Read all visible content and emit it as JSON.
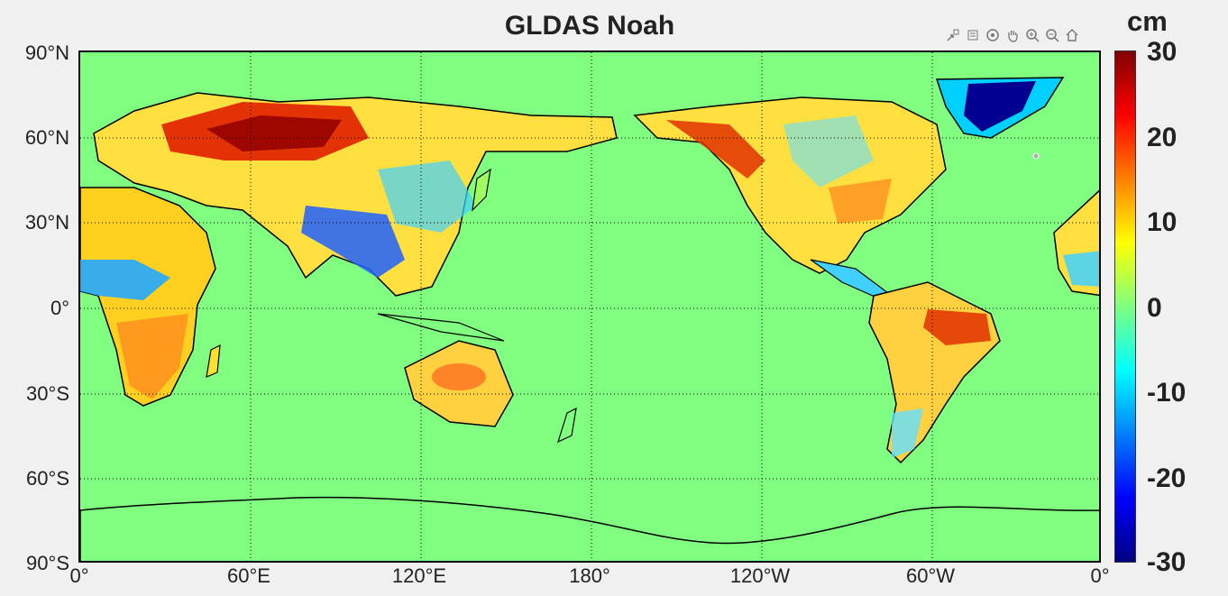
{
  "title": "GLDAS Noah",
  "toolbar": {
    "icons": [
      "export-icon",
      "brush-icon",
      "rotate-icon",
      "pan-icon",
      "zoom-in-icon",
      "zoom-out-icon",
      "home-icon"
    ]
  },
  "map": {
    "ocean_color": "#80ff80",
    "lat_ticks": [
      "90°N",
      "60°N",
      "30°N",
      "0°",
      "30°S",
      "60°S",
      "90°S"
    ],
    "lon_ticks": [
      "0°",
      "60°E",
      "120°E",
      "180°",
      "120°W",
      "60°W",
      "0°"
    ]
  },
  "colorbar": {
    "unit": "cm",
    "ticks": [
      "30",
      "20",
      "10",
      "0",
      "-10",
      "-20",
      "-30"
    ],
    "range": [
      -30,
      30
    ],
    "colormap": "jet"
  }
}
